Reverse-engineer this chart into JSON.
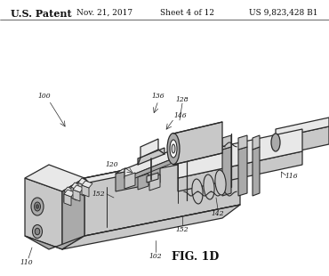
{
  "bg_color": "#ffffff",
  "line_color": "#2a2a2a",
  "header": {
    "patent_text": "U.S. Patent",
    "date_text": "Nov. 21, 2017",
    "sheet_text": "Sheet 4 of 12",
    "number_text": "US 9,823,428 B1"
  },
  "fig_label": "FIG. 1D",
  "gray_light": "#e8e8e8",
  "gray_mid": "#c8c8c8",
  "gray_dark": "#aaaaaa",
  "gray_very_dark": "#888888"
}
